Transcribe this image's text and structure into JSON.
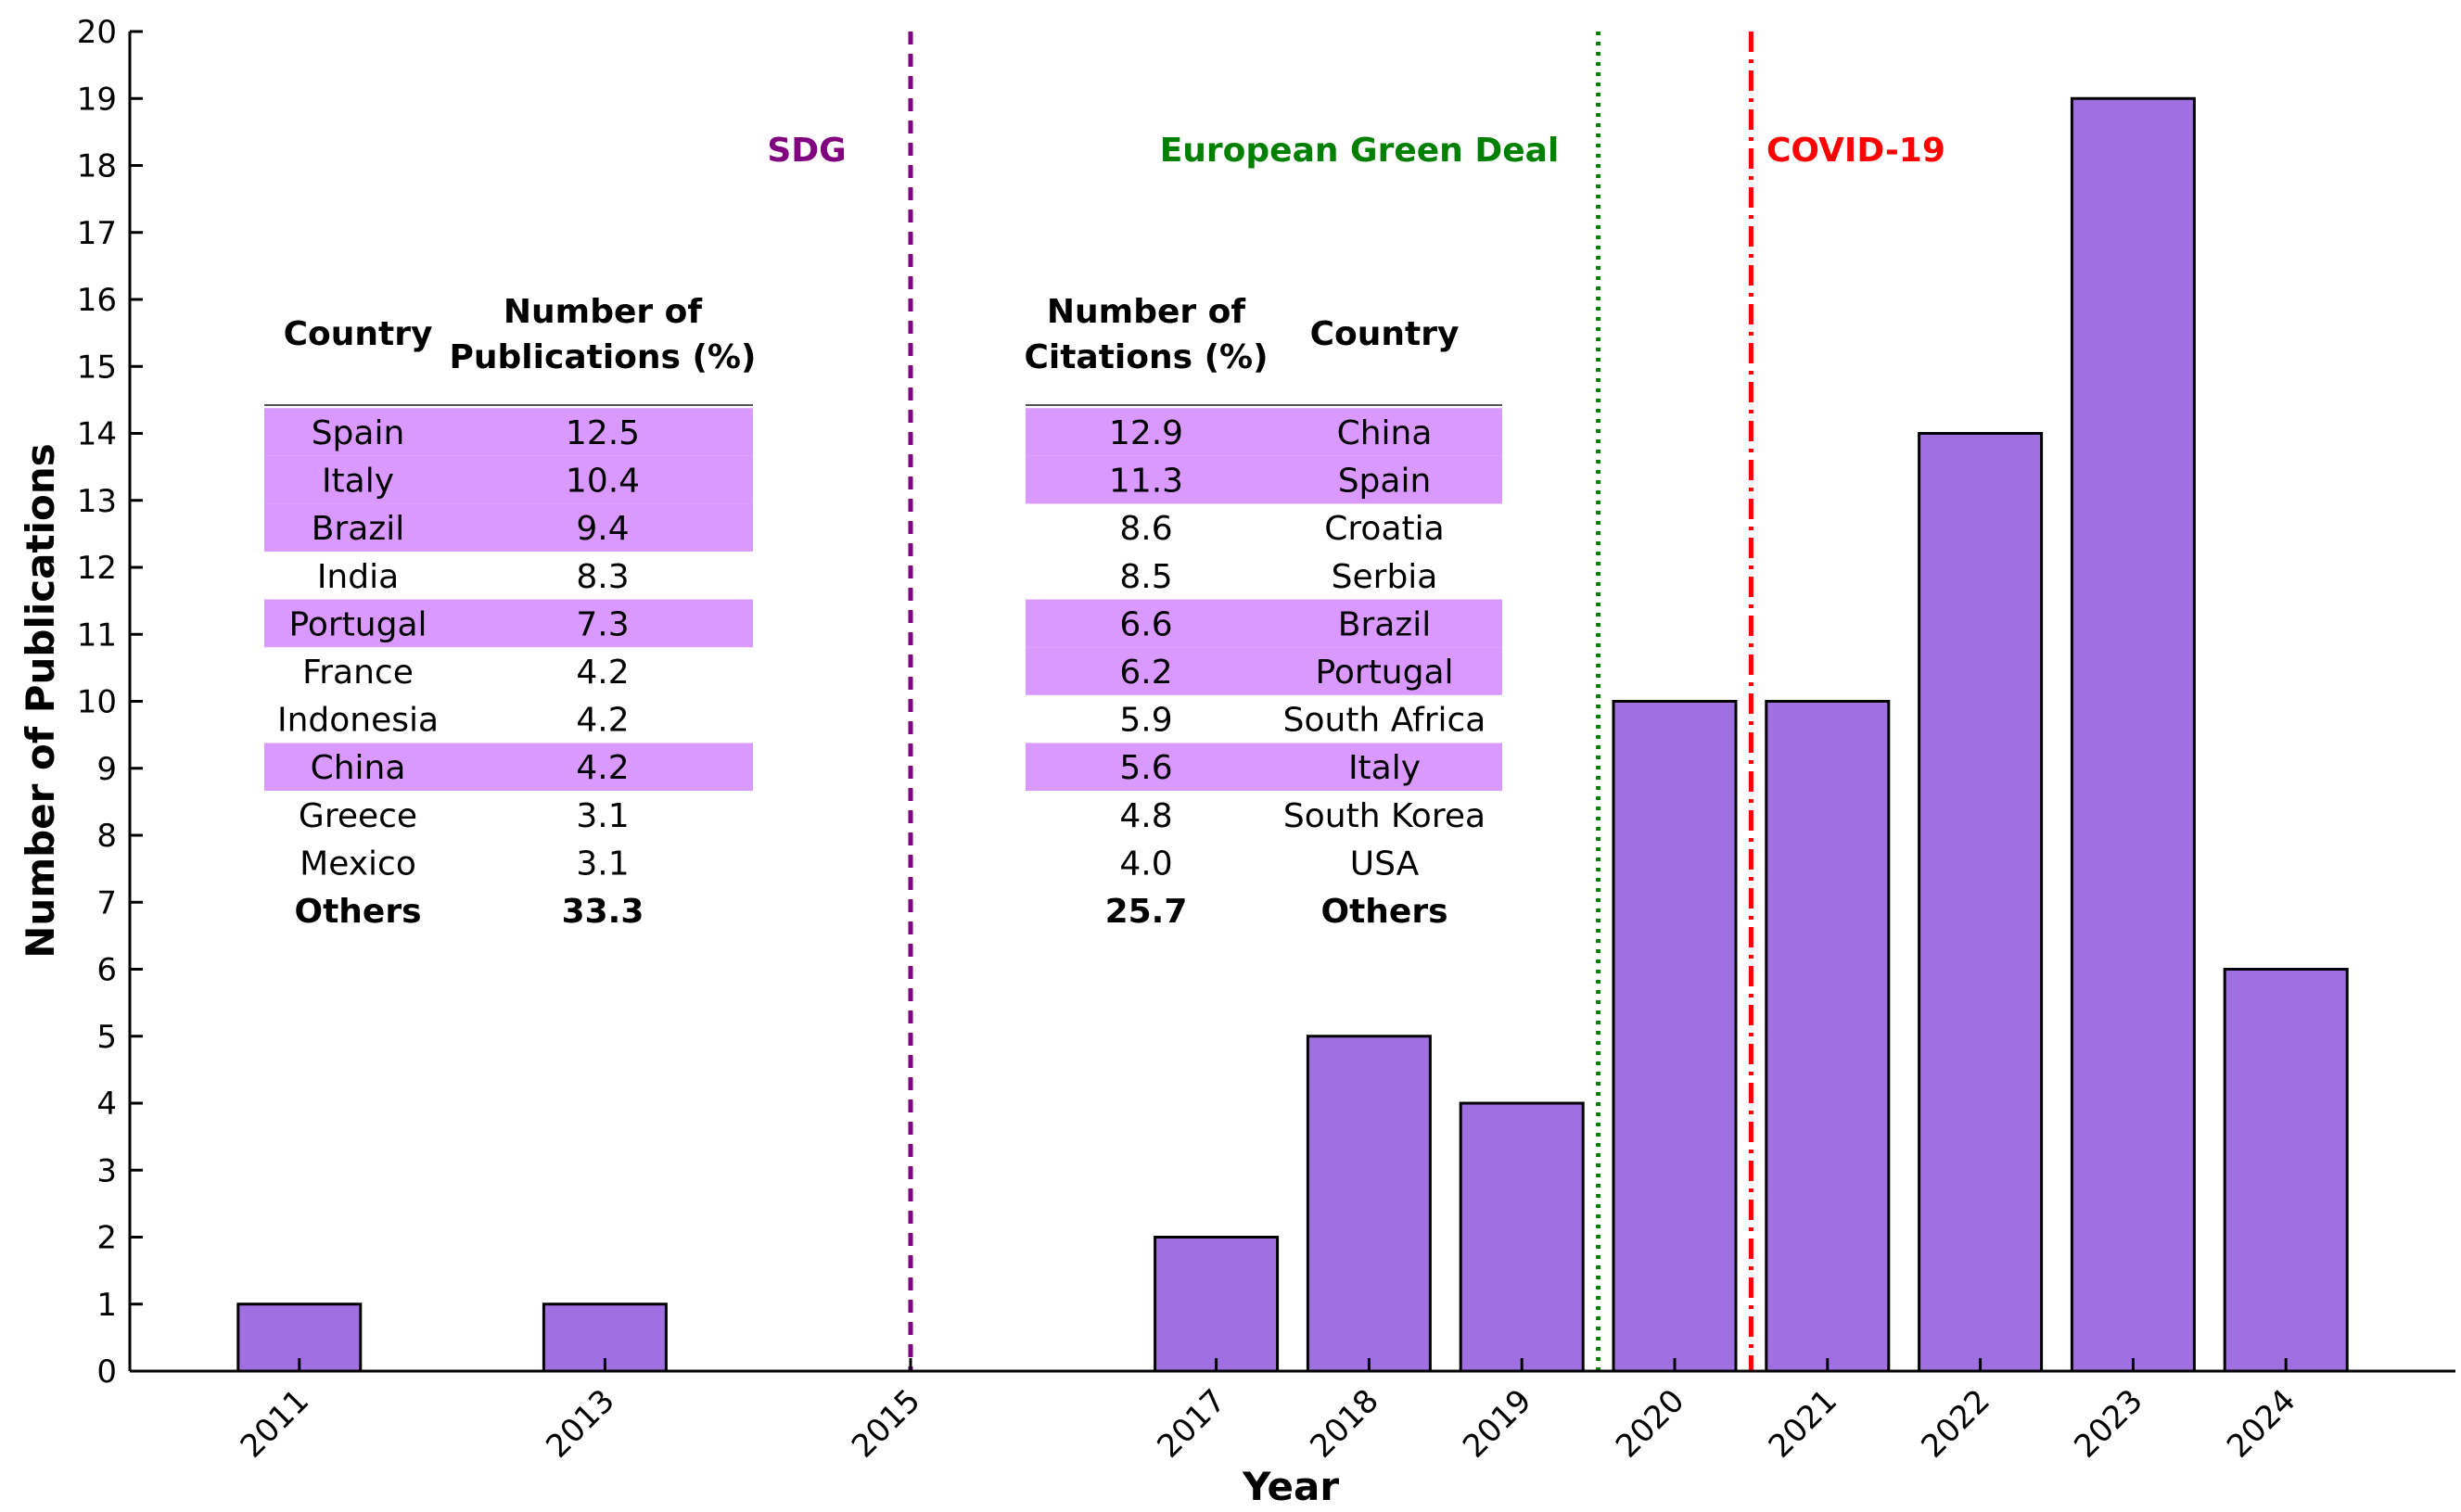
{
  "chart_data": {
    "type": "bar",
    "xlabel": "Year",
    "ylabel": "Number of Publications",
    "ylim": [
      0,
      20
    ],
    "yticks": [
      0,
      1,
      2,
      3,
      4,
      5,
      6,
      7,
      8,
      9,
      10,
      11,
      12,
      13,
      14,
      15,
      16,
      17,
      18,
      19,
      20
    ],
    "xlim": [
      2010,
      2025
    ],
    "xticks": [
      2011,
      2013,
      2015,
      2017,
      2018,
      2019,
      2020,
      2021,
      2022,
      2023,
      2024
    ],
    "bars": [
      {
        "year": 2011,
        "value": 1
      },
      {
        "year": 2013,
        "value": 1
      },
      {
        "year": 2017,
        "value": 2
      },
      {
        "year": 2018,
        "value": 5
      },
      {
        "year": 2019,
        "value": 4
      },
      {
        "year": 2020,
        "value": 10
      },
      {
        "year": 2021,
        "value": 10
      },
      {
        "year": 2022,
        "value": 14
      },
      {
        "year": 2023,
        "value": 19
      },
      {
        "year": 2024,
        "value": 6
      }
    ],
    "bar_color": "#a070e0",
    "events": [
      {
        "label": "SDG",
        "x": 2015,
        "style": "dashed",
        "color": "#800080"
      },
      {
        "label": "European Green Deal",
        "x": 2019.5,
        "style": "dotted",
        "color": "#008000"
      },
      {
        "label": "COVID-19",
        "x": 2020.5,
        "style": "dashdot",
        "color": "#ff0000"
      }
    ]
  },
  "tables": {
    "publications": {
      "headers": [
        [
          "Country"
        ],
        [
          "Number of",
          "Publications (%)"
        ]
      ],
      "rows": [
        {
          "country": "Spain",
          "value": "12.5",
          "highlight": true
        },
        {
          "country": "Italy",
          "value": "10.4",
          "highlight": true
        },
        {
          "country": "Brazil",
          "value": "9.4",
          "highlight": true
        },
        {
          "country": "India",
          "value": "8.3",
          "highlight": false
        },
        {
          "country": "Portugal",
          "value": "7.3",
          "highlight": true
        },
        {
          "country": "France",
          "value": "4.2",
          "highlight": false
        },
        {
          "country": "Indonesia",
          "value": "4.2",
          "highlight": false
        },
        {
          "country": "China",
          "value": "4.2",
          "highlight": true
        },
        {
          "country": "Greece",
          "value": "3.1",
          "highlight": false
        },
        {
          "country": "Mexico",
          "value": "3.1",
          "highlight": false
        },
        {
          "country": "Others",
          "value": "33.3",
          "highlight": false,
          "bold": true
        }
      ]
    },
    "citations": {
      "headers": [
        [
          "Number of",
          "Citations (%)"
        ],
        [
          "Country"
        ]
      ],
      "rows": [
        {
          "value": "12.9",
          "country": "China",
          "highlight": true
        },
        {
          "value": "11.3",
          "country": "Spain",
          "highlight": true
        },
        {
          "value": "8.6",
          "country": "Croatia",
          "highlight": false
        },
        {
          "value": "8.5",
          "country": "Serbia",
          "highlight": false
        },
        {
          "value": "6.6",
          "country": "Brazil",
          "highlight": true
        },
        {
          "value": "6.2",
          "country": "Portugal",
          "highlight": true
        },
        {
          "value": "5.9",
          "country": "South Africa",
          "highlight": false
        },
        {
          "value": "5.6",
          "country": "Italy",
          "highlight": true
        },
        {
          "value": "4.8",
          "country": "South Korea",
          "highlight": false
        },
        {
          "value": "4.0",
          "country": "USA",
          "highlight": false
        },
        {
          "value": "25.7",
          "country": "Others",
          "highlight": false,
          "bold": true
        }
      ]
    },
    "highlight_color": "#d999ff"
  }
}
